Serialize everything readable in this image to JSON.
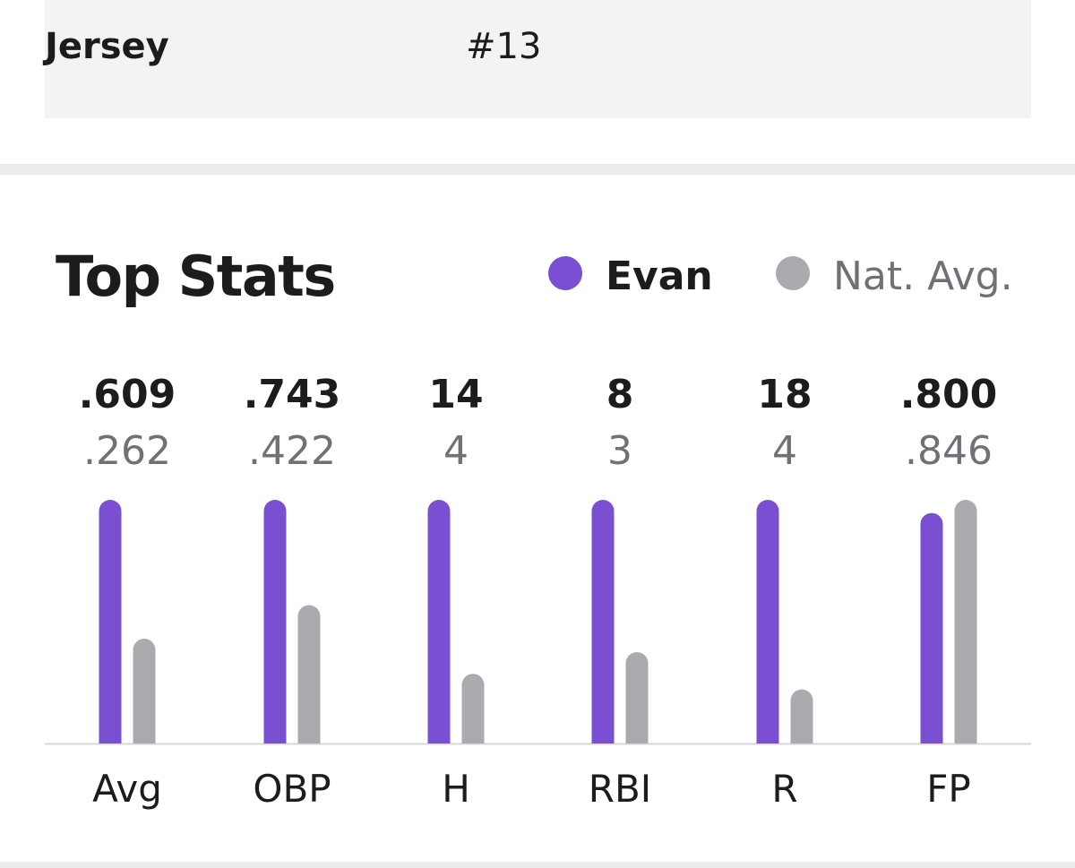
{
  "jersey": {
    "label": "Jersey",
    "value": "#13"
  },
  "section": {
    "title": "Top Stats"
  },
  "legend": [
    {
      "name": "Evan",
      "color": "#7a4fd1"
    },
    {
      "name": "Nat. Avg.",
      "color": "#a9abaf"
    }
  ],
  "chart_data": {
    "type": "bar",
    "categories": [
      "Avg",
      "OBP",
      "H",
      "RBI",
      "R",
      "FP"
    ],
    "series": [
      {
        "name": "Evan",
        "values": [
          ".609",
          ".743",
          "14",
          "8",
          "18",
          ".800"
        ],
        "relative_height": [
          1.0,
          1.0,
          1.0,
          1.0,
          1.0,
          0.946
        ],
        "color": "#7a4fd1"
      },
      {
        "name": "Nat. Avg.",
        "values": [
          ".262",
          ".422",
          "4",
          "3",
          "4",
          ".846"
        ],
        "relative_height": [
          0.43,
          0.568,
          0.286,
          0.375,
          0.222,
          1.0
        ],
        "color": "#a9abaf"
      }
    ],
    "legend_position": "top-right",
    "grid": false,
    "value_labels": true
  }
}
